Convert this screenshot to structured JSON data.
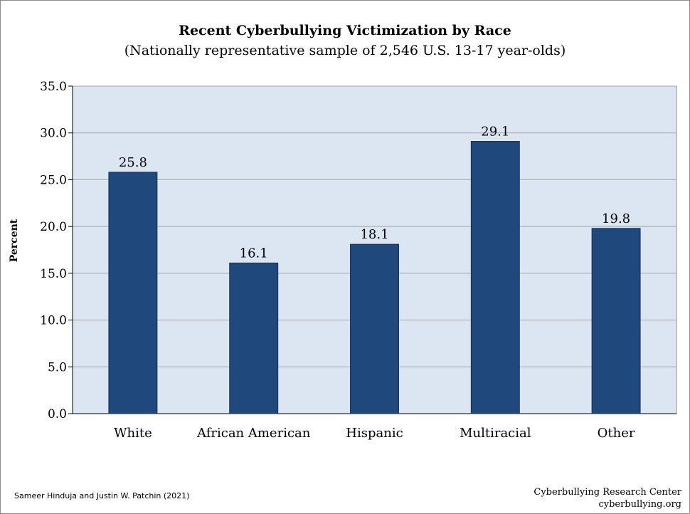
{
  "chart_data": {
    "type": "bar",
    "title": "Recent Cyberbullying Victimization by Race",
    "subtitle": "(Nationally representative sample of 2,546 U.S. 13-17 year-olds)",
    "xlabel": "",
    "ylabel": "Percent",
    "categories": [
      "White",
      "African American",
      "Hispanic",
      "Multiracial",
      "Other"
    ],
    "values": [
      25.8,
      16.1,
      18.1,
      29.1,
      19.8
    ],
    "data_labels": [
      "25.8",
      "16.1",
      "18.1",
      "29.1",
      "19.8"
    ],
    "ylim": [
      0,
      35
    ],
    "yticks": [
      0,
      5,
      10,
      15,
      20,
      25,
      30,
      35
    ],
    "ytick_labels": [
      "0.0",
      "5.0",
      "10.0",
      "15.0",
      "20.0",
      "25.0",
      "30.0",
      "35.0"
    ],
    "grid": true,
    "legend": "none",
    "colors": {
      "bar_fill": "#1f487c",
      "bar_stroke": "#162f50",
      "plot_background": "#dce6f2",
      "gridline": "#a6a6a6"
    }
  },
  "footer": {
    "citation": "Sameer Hinduja and Justin W. Patchin (2021)",
    "org_name": "Cyberbullying Research Center",
    "org_url": "cyberbullying.org"
  }
}
